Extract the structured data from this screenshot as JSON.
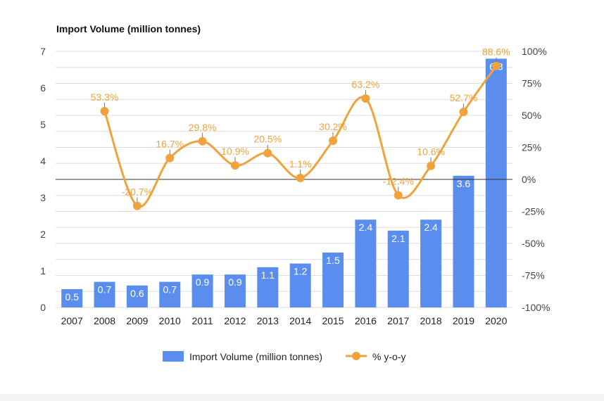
{
  "chart_data": {
    "type": "bar",
    "title": "Import Volume (million tonnes)",
    "categories": [
      "2007",
      "2008",
      "2009",
      "2010",
      "2011",
      "2012",
      "2013",
      "2014",
      "2015",
      "2016",
      "2017",
      "2018",
      "2019",
      "2020"
    ],
    "series": [
      {
        "name": "Import Volume (million tonnes)",
        "type": "bar",
        "axis": "left",
        "values": [
          0.5,
          0.7,
          0.6,
          0.7,
          0.9,
          0.9,
          1.1,
          1.2,
          1.5,
          2.4,
          2.1,
          2.4,
          3.6,
          6.8
        ],
        "labels": [
          "0.5",
          "0.7",
          "0.6",
          "0.7",
          "0.9",
          "0.9",
          "1.1",
          "1.2",
          "1.5",
          "2.4",
          "2.1",
          "2.4",
          "3.6",
          "6.8"
        ]
      },
      {
        "name": "% y-o-y",
        "type": "line",
        "axis": "right",
        "values": [
          null,
          53.3,
          -20.7,
          16.7,
          29.8,
          10.9,
          20.5,
          1.1,
          30.2,
          63.2,
          -12.4,
          10.6,
          52.7,
          88.6
        ],
        "labels": [
          "",
          "53.3%",
          "-20.7%",
          "16.7%",
          "29.8%",
          "10.9%",
          "20.5%",
          "1.1%",
          "30.2%",
          "63.2%",
          "-12.4%",
          "10.6%",
          "52.7%",
          "88.6%"
        ]
      }
    ],
    "ylim_left": [
      0,
      7
    ],
    "yticks_left": [
      "0",
      "1",
      "2",
      "3",
      "4",
      "5",
      "6",
      "7"
    ],
    "ylim_right": [
      -100,
      100
    ],
    "yticks_right": [
      "-100%",
      "-75%",
      "-50%",
      "-25%",
      "0%",
      "25%",
      "50%",
      "75%",
      "100%"
    ],
    "grid": true,
    "legend_position": "bottom",
    "colors": {
      "bar": "#5b8def",
      "line": "#f0a23c",
      "grid": "#dddddd",
      "zero_line": "#333333"
    }
  }
}
